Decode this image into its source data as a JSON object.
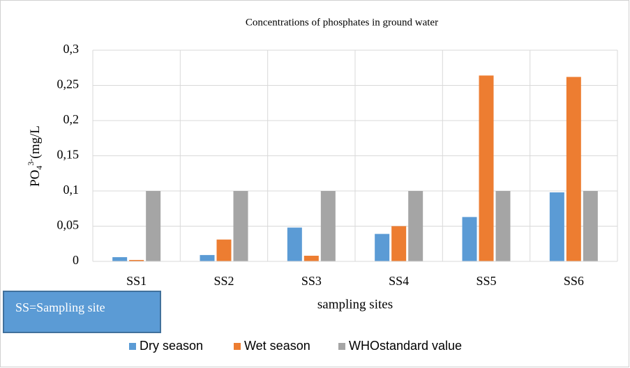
{
  "chart_data": {
    "type": "bar",
    "title": "Concentrations of phosphates in ground water",
    "y_label": {
      "base": "PO",
      "sub": "4",
      "sup": "3-",
      "rest": "(mg/L"
    },
    "x_label": "sampling sites",
    "annotation": "SS=Sampling site",
    "categories": [
      "SS1",
      "SS2",
      "SS3",
      "SS4",
      "SS5",
      "SS6"
    ],
    "series": [
      {
        "name": "Dry season",
        "color": "#5b9bd5",
        "values": [
          0.006,
          0.009,
          0.048,
          0.039,
          0.063,
          0.098
        ]
      },
      {
        "name": "Wet season",
        "color": "#ed7d31",
        "values": [
          0.002,
          0.031,
          0.008,
          0.05,
          0.264,
          0.262
        ]
      },
      {
        "name": "WHOstandard value",
        "color": "#a5a5a5",
        "values": [
          0.1,
          0.1,
          0.1,
          0.1,
          0.1,
          0.1
        ]
      }
    ],
    "ylim": [
      0,
      0.3
    ],
    "yticks": [
      0,
      {
        "value": 0.05,
        "label": "0,05"
      },
      {
        "value": 0.1,
        "label": "0,1"
      },
      {
        "value": 0.15,
        "label": "0,15"
      },
      {
        "value": 0.2,
        "label": "0,2"
      },
      {
        "value": 0.25,
        "label": "0,25"
      },
      {
        "value": 0.3,
        "label": "0,3"
      }
    ],
    "grid": true,
    "legend": "bottom"
  }
}
